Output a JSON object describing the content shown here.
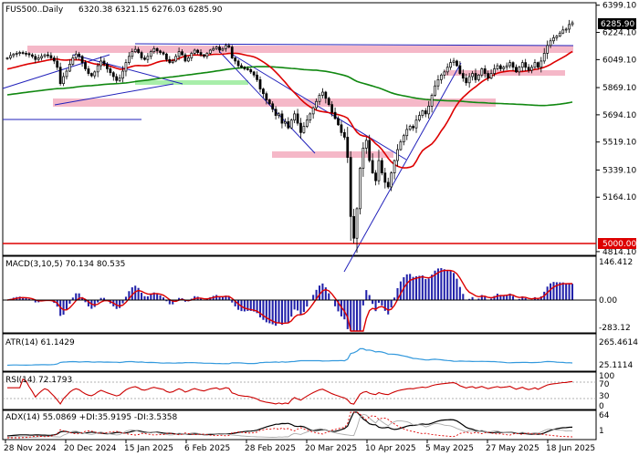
{
  "chart_data": {
    "type": "candlestick",
    "symbol_label": "FUS500..Daily",
    "ohlc_label": "6320.38 6321.15 6276.03 6285.90",
    "last_price": 6285.9,
    "last_price_label": "6285.90",
    "key_level": 5000,
    "key_level_label": "5000.00",
    "price_axis": {
      "range": [
        4790,
        6415
      ],
      "ticks": [
        {
          "v": 6399.1,
          "label": "6399.10"
        },
        {
          "v": 6224.1,
          "label": "6224.10"
        },
        {
          "v": 6049.1,
          "label": "6049.10"
        },
        {
          "v": 5869.1,
          "label": "5869.10"
        },
        {
          "v": 5694.1,
          "label": "5694.10"
        },
        {
          "v": 5519.1,
          "label": "5519.10"
        },
        {
          "v": 5339.1,
          "label": "5339.10"
        },
        {
          "v": 5164.1,
          "label": "5164.10"
        },
        {
          "v": 4814.1,
          "label": "4814.10"
        }
      ]
    },
    "date_labels": [
      "28 Nov 2024",
      "20 Dec 2024",
      "15 Jan 2025",
      "6 Feb 2025",
      "28 Feb 2025",
      "20 Mar 2025",
      "10 Apr 2025",
      "5 May 2025",
      "27 May 2025",
      "18 Jun 2025"
    ],
    "closes": [
      6060,
      6075,
      6085,
      6090,
      6095,
      6090,
      6088,
      6080,
      6070,
      6050,
      6060,
      6070,
      6080,
      6075,
      6060,
      6040,
      6000,
      5895,
      5940,
      5975,
      6020,
      6060,
      6085,
      6070,
      6030,
      5990,
      5960,
      5945,
      5970,
      6010,
      6040,
      6020,
      5990,
      5965,
      5940,
      5915,
      5930,
      5975,
      6030,
      6070,
      6100,
      6115,
      6095,
      6060,
      6050,
      6070,
      6100,
      6120,
      6105,
      6095,
      6085,
      6050,
      6030,
      6040,
      6070,
      6100,
      6080,
      6040,
      6060,
      6090,
      6110,
      6095,
      6080,
      6070,
      6090,
      6110,
      6120,
      6130,
      6110,
      6120,
      6140,
      6130,
      6060,
      6040,
      6010,
      6000,
      5990,
      5985,
      5970,
      5950,
      5920,
      5860,
      5830,
      5790,
      5765,
      5730,
      5690,
      5700,
      5640,
      5650,
      5610,
      5660,
      5700,
      5640,
      5580,
      5620,
      5660,
      5700,
      5740,
      5780,
      5820,
      5840,
      5800,
      5760,
      5710,
      5670,
      5630,
      5580,
      5550,
      5420,
      5040,
      4900,
      5090,
      5350,
      5480,
      5530,
      5400,
      5320,
      5270,
      5400,
      5320,
      5260,
      5230,
      5320,
      5400,
      5470,
      5520,
      5560,
      5600,
      5620,
      5610,
      5660,
      5690,
      5720,
      5700,
      5750,
      5820,
      5880,
      5920,
      5950,
      5970,
      6000,
      6030,
      6040,
      6010,
      5960,
      5930,
      5900,
      5940,
      5960,
      5920,
      5950,
      5990,
      5960,
      5930,
      5960,
      5990,
      6010,
      5990,
      6000,
      6010,
      6030,
      6000,
      5970,
      6000,
      6030,
      6000,
      5980,
      6000,
      6030,
      6000,
      6040,
      6090,
      6140,
      6170,
      6190,
      6200,
      6220,
      6240,
      6245,
      6275,
      6285.9
    ],
    "indicators": {
      "macd": {
        "label": "MACD(3,10,5) 70.134 80.535",
        "ticks": [
          "146.412",
          "0.00",
          "-283.12"
        ]
      },
      "atr": {
        "label": "ATR(14) 61.1429",
        "ticks": [
          "265.4614",
          "25.1114"
        ]
      },
      "rsi": {
        "label": "RSI(14) 72.1793",
        "ticks": [
          "100",
          "70",
          "30",
          "0"
        ]
      },
      "adx": {
        "label": "ADX(14) 55.0869 +DI:35.9195 -DI:3.5358",
        "ticks": [
          "64",
          "1"
        ]
      }
    },
    "colors": {
      "bull": "#ffffff",
      "bear": "#000000",
      "ma_fast": "#dd0000",
      "ma_slow": "#118811",
      "zone_pink": "#f5b8c8",
      "zone_green": "#a8eeaa",
      "trend_line": "#2222bb",
      "level_red": "#dd0000"
    }
  }
}
